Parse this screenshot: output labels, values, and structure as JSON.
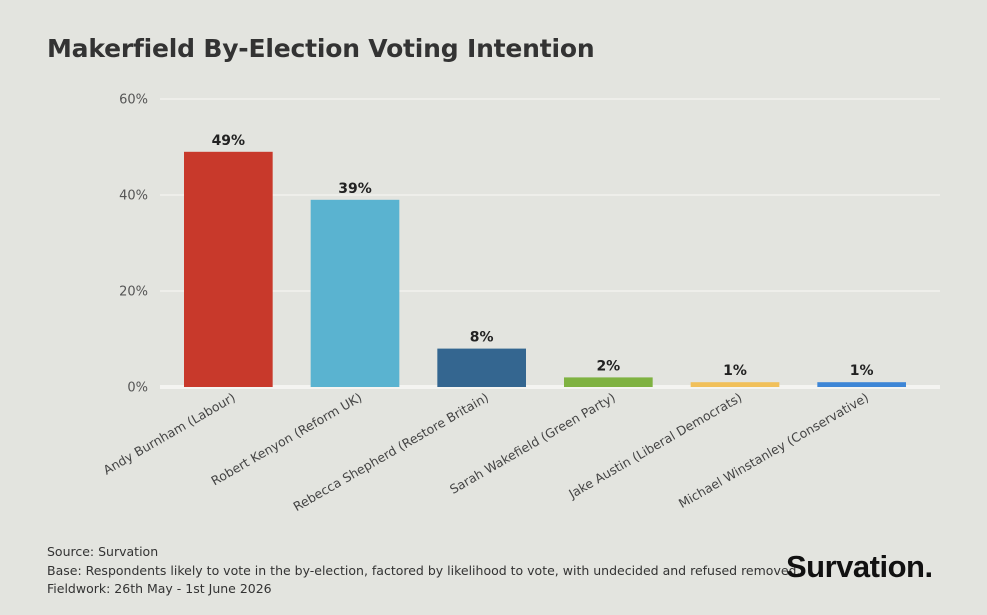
{
  "title": "Makerfield By-Election Voting Intention",
  "chart_data": {
    "type": "bar",
    "title": "Makerfield By-Election Voting Intention",
    "xlabel": "",
    "ylabel": "",
    "ylim": [
      0,
      60
    ],
    "yticks": [
      0,
      20,
      40,
      60
    ],
    "ytick_format": "%",
    "grid": true,
    "categories": [
      "Andy Burnham (Labour)",
      "Robert Kenyon (Reform UK)",
      "Rebecca Shepherd (Restore Britain)",
      "Sarah Wakefield (Green Party)",
      "Jake Austin (Liberal Democrats)",
      "Michael Winstanley (Conservative)"
    ],
    "values": [
      49,
      39,
      8,
      2,
      1,
      1
    ],
    "data_labels": [
      "49%",
      "39%",
      "8%",
      "2%",
      "1%",
      "1%"
    ],
    "colors": [
      "#c8392b",
      "#5ab3d0",
      "#346690",
      "#7fb241",
      "#f1c05a",
      "#3e86d6"
    ]
  },
  "footer": {
    "source": "Source: Survation",
    "base": "Base: Respondents likely to vote in the by-election, factored by likelihood to vote, with undecided and refused removed.",
    "fieldwork": "Fieldwork: 26th May - 1st June 2026"
  },
  "logo_text": "Survation."
}
